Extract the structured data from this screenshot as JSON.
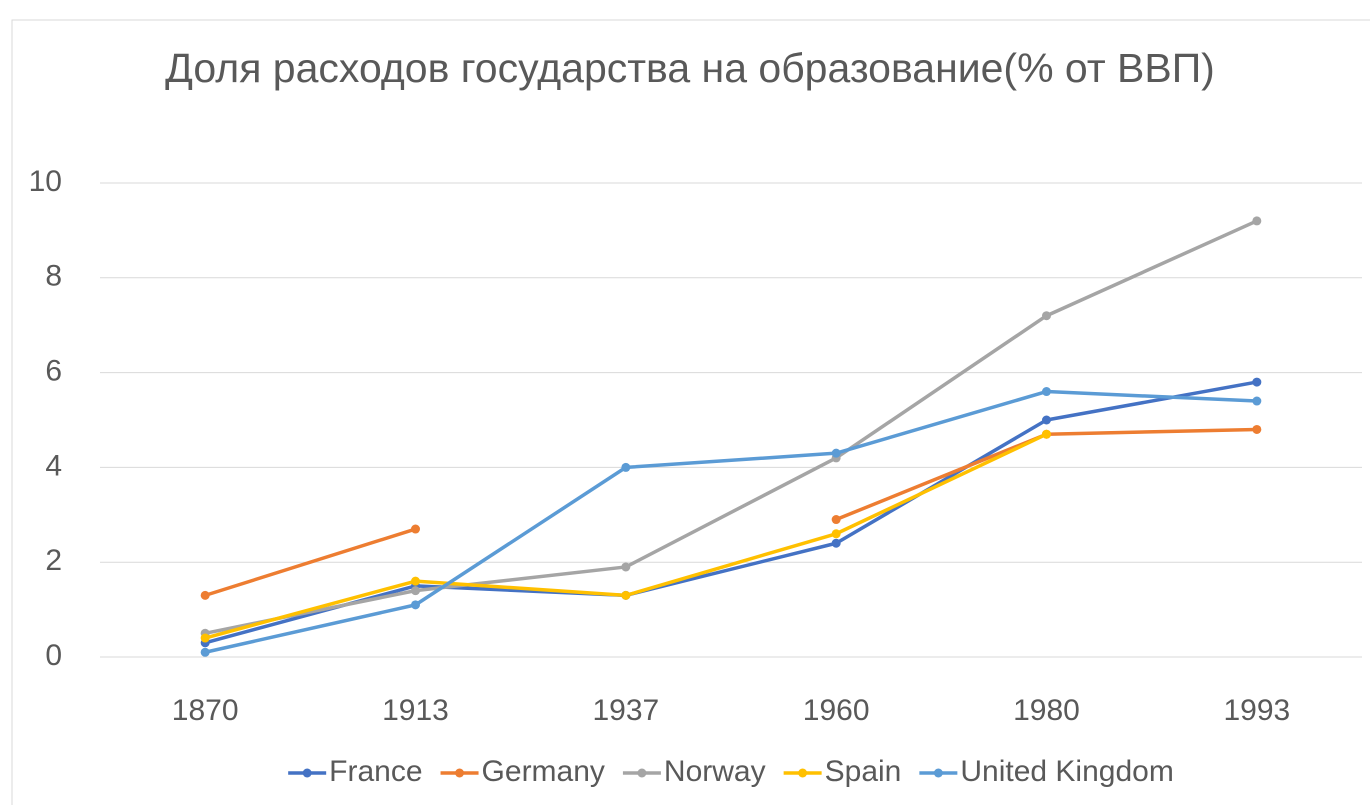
{
  "chart_data": {
    "type": "line",
    "title": "Доля расходов государства на образование(% от ВВП)",
    "categories": [
      "1870",
      "1913",
      "1937",
      "1960",
      "1980",
      "1993"
    ],
    "series": [
      {
        "name": "France",
        "color": "#4472c4",
        "values": [
          0.3,
          1.5,
          1.3,
          2.4,
          5.0,
          5.8
        ]
      },
      {
        "name": "Germany",
        "color": "#ed7d31",
        "values": [
          1.3,
          2.7,
          null,
          2.9,
          4.7,
          4.8
        ]
      },
      {
        "name": "Norway",
        "color": "#a5a5a5",
        "values": [
          0.5,
          1.4,
          1.9,
          4.2,
          7.2,
          9.2
        ]
      },
      {
        "name": "Spain",
        "color": "#ffc000",
        "values": [
          0.4,
          1.6,
          1.3,
          2.6,
          4.7,
          null
        ]
      },
      {
        "name": "United Kingdom",
        "color": "#5b9bd5",
        "values": [
          0.1,
          1.1,
          4.0,
          4.3,
          5.6,
          5.4
        ]
      }
    ],
    "ylim": [
      0,
      10
    ],
    "yticks": [
      0,
      2,
      4,
      6,
      8,
      10
    ],
    "grid": true,
    "legend": "bottom"
  }
}
